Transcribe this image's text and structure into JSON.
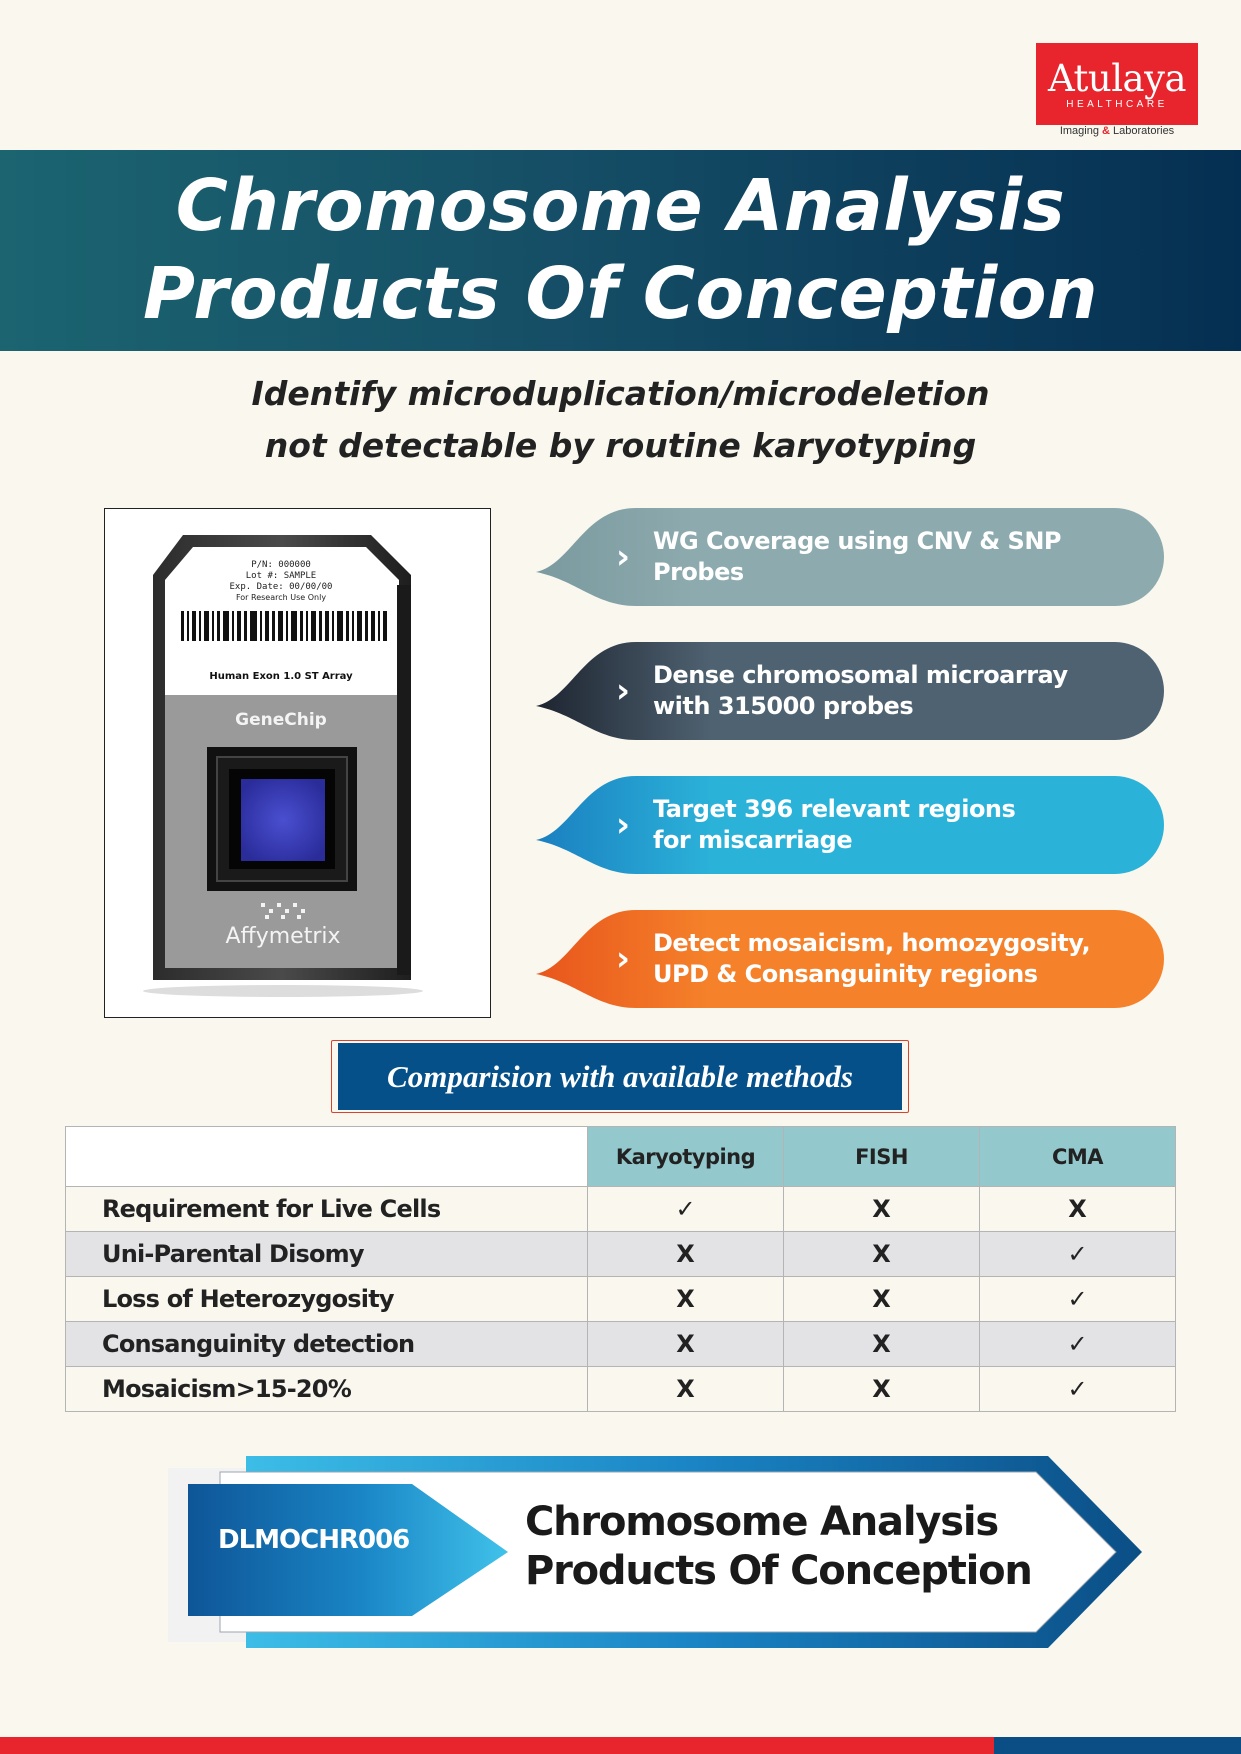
{
  "logo": {
    "word": "Atulaya",
    "sub": "HEALTHCARE",
    "tag_left": "Imaging",
    "tag_amp": "&",
    "tag_right": "Laboratories"
  },
  "title": {
    "line1": "Chromosome Analysis",
    "line2": "Products Of Conception"
  },
  "subtitle": {
    "line1": "Identify microduplication/microdeletion",
    "line2": "not detectable by routine karyotyping"
  },
  "chip_image": {
    "pn": "P/N: 000000",
    "lot": "Lot #: SAMPLE",
    "exp": "Exp. Date: 00/00/00",
    "research": "For Research Use Only",
    "array": "Human Exon 1.0 ST Array",
    "brand": "GeneChip",
    "maker": "Affymetrix"
  },
  "features": [
    {
      "line1": "WG Coverage using CNV & SNP Probes",
      "line2": "",
      "color": "#8daaae"
    },
    {
      "line1": "Dense chromosomal microarray",
      "line2": "with 315000 probes",
      "color": "#4f6271"
    },
    {
      "line1": "Target 396 relevant regions",
      "line2": "for miscarriage",
      "color": "#2bb2d9"
    },
    {
      "line1": "Detect mosaicism, homozygosity,",
      "line2": "UPD & Consanguinity regions",
      "color": "#f5822a"
    }
  ],
  "chevron": "›",
  "comparison": {
    "heading": "Comparision with available methods",
    "columns": [
      "Karyotyping",
      "FISH",
      "CMA"
    ],
    "rows": [
      {
        "feature": "Requirement for Live Cells",
        "values": [
          "✓",
          "X",
          "X"
        ]
      },
      {
        "feature": "Uni-Parental Disomy",
        "values": [
          "X",
          "X",
          "✓"
        ]
      },
      {
        "feature": "Loss of Heterozygosity",
        "values": [
          "X",
          "X",
          "✓"
        ]
      },
      {
        "feature": "Consanguinity detection",
        "values": [
          "X",
          "X",
          "✓"
        ]
      },
      {
        "feature": "Mosaicism>15-20%",
        "values": [
          "X",
          "X",
          "✓"
        ]
      }
    ]
  },
  "ribbon": {
    "code": "DLMOCHR006",
    "title_line1": "Chromosome Analysis",
    "title_line2": "Products Of Conception"
  },
  "colors": {
    "brand_red": "#e8252d",
    "banner_dark": "#052f52",
    "table_header": "#93c8cd",
    "ribbon_blue": "#0b4e86"
  }
}
